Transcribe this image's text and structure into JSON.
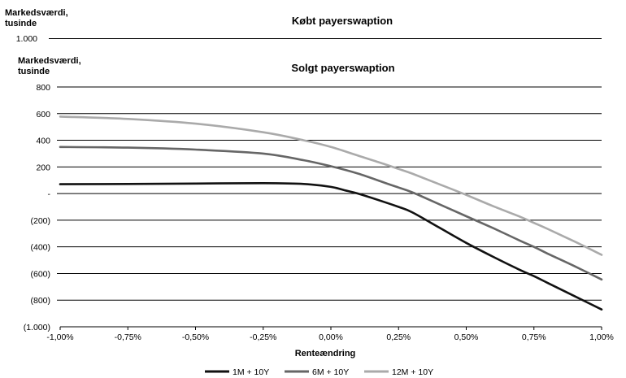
{
  "header": {
    "top_ylabel_line1": "Markedsværdi,",
    "top_ylabel_line2": "tusinde",
    "top_title": "Købt payerswaption",
    "top_tick": "1.000"
  },
  "chart_data": {
    "type": "line",
    "title": "Solgt payerswaption",
    "ylabel_line1": "Markedsværdi,",
    "ylabel_line2": "tusinde",
    "xlabel": "Renteændring",
    "xlim": [
      -1.0,
      1.0
    ],
    "ylim": [
      -1000,
      800
    ],
    "x_ticks": [
      -1.0,
      -0.75,
      -0.5,
      -0.25,
      0.0,
      0.25,
      0.5,
      0.75,
      1.0
    ],
    "x_tick_labels": [
      "-1,00%",
      "-0,75%",
      "-0,50%",
      "-0,25%",
      "0,00%",
      "0,25%",
      "0,50%",
      "0,75%",
      "1,00%"
    ],
    "y_ticks": [
      800,
      600,
      400,
      200,
      0,
      -200,
      -400,
      -600,
      -800,
      -1000
    ],
    "y_tick_labels": [
      "800",
      "600",
      "400",
      "200",
      "-",
      "(200)",
      "(400)",
      "(600)",
      "(800)",
      "(1.000)"
    ],
    "grid": true,
    "legend_position": "bottom",
    "series": [
      {
        "name": "1M + 10Y",
        "color": "#111111",
        "x": [
          -1.0,
          -0.75,
          -0.5,
          -0.25,
          -0.1,
          0.0,
          0.05,
          0.1,
          0.2,
          0.25,
          0.3,
          0.4,
          0.5,
          0.6,
          0.7,
          0.75,
          0.8,
          0.9,
          1.0
        ],
        "y": [
          70,
          72,
          75,
          78,
          72,
          50,
          25,
          0,
          -65,
          -100,
          -140,
          -255,
          -370,
          -475,
          -575,
          -620,
          -670,
          -770,
          -870
        ]
      },
      {
        "name": "6M + 10Y",
        "color": "#666666",
        "x": [
          -1.0,
          -0.75,
          -0.5,
          -0.25,
          -0.1,
          0.0,
          0.1,
          0.2,
          0.25,
          0.3,
          0.4,
          0.5,
          0.6,
          0.7,
          0.75,
          0.8,
          0.9,
          1.0
        ],
        "y": [
          350,
          345,
          330,
          300,
          250,
          205,
          150,
          80,
          45,
          10,
          -80,
          -170,
          -260,
          -355,
          -400,
          -450,
          -545,
          -645
        ]
      },
      {
        "name": "12M + 10Y",
        "color": "#aaaaaa",
        "x": [
          -1.0,
          -0.75,
          -0.5,
          -0.25,
          -0.1,
          0.0,
          0.1,
          0.2,
          0.25,
          0.3,
          0.4,
          0.5,
          0.6,
          0.7,
          0.75,
          0.8,
          0.9,
          1.0
        ],
        "y": [
          578,
          560,
          525,
          460,
          400,
          350,
          285,
          220,
          185,
          150,
          70,
          -10,
          -95,
          -175,
          -220,
          -265,
          -360,
          -460
        ]
      }
    ]
  }
}
